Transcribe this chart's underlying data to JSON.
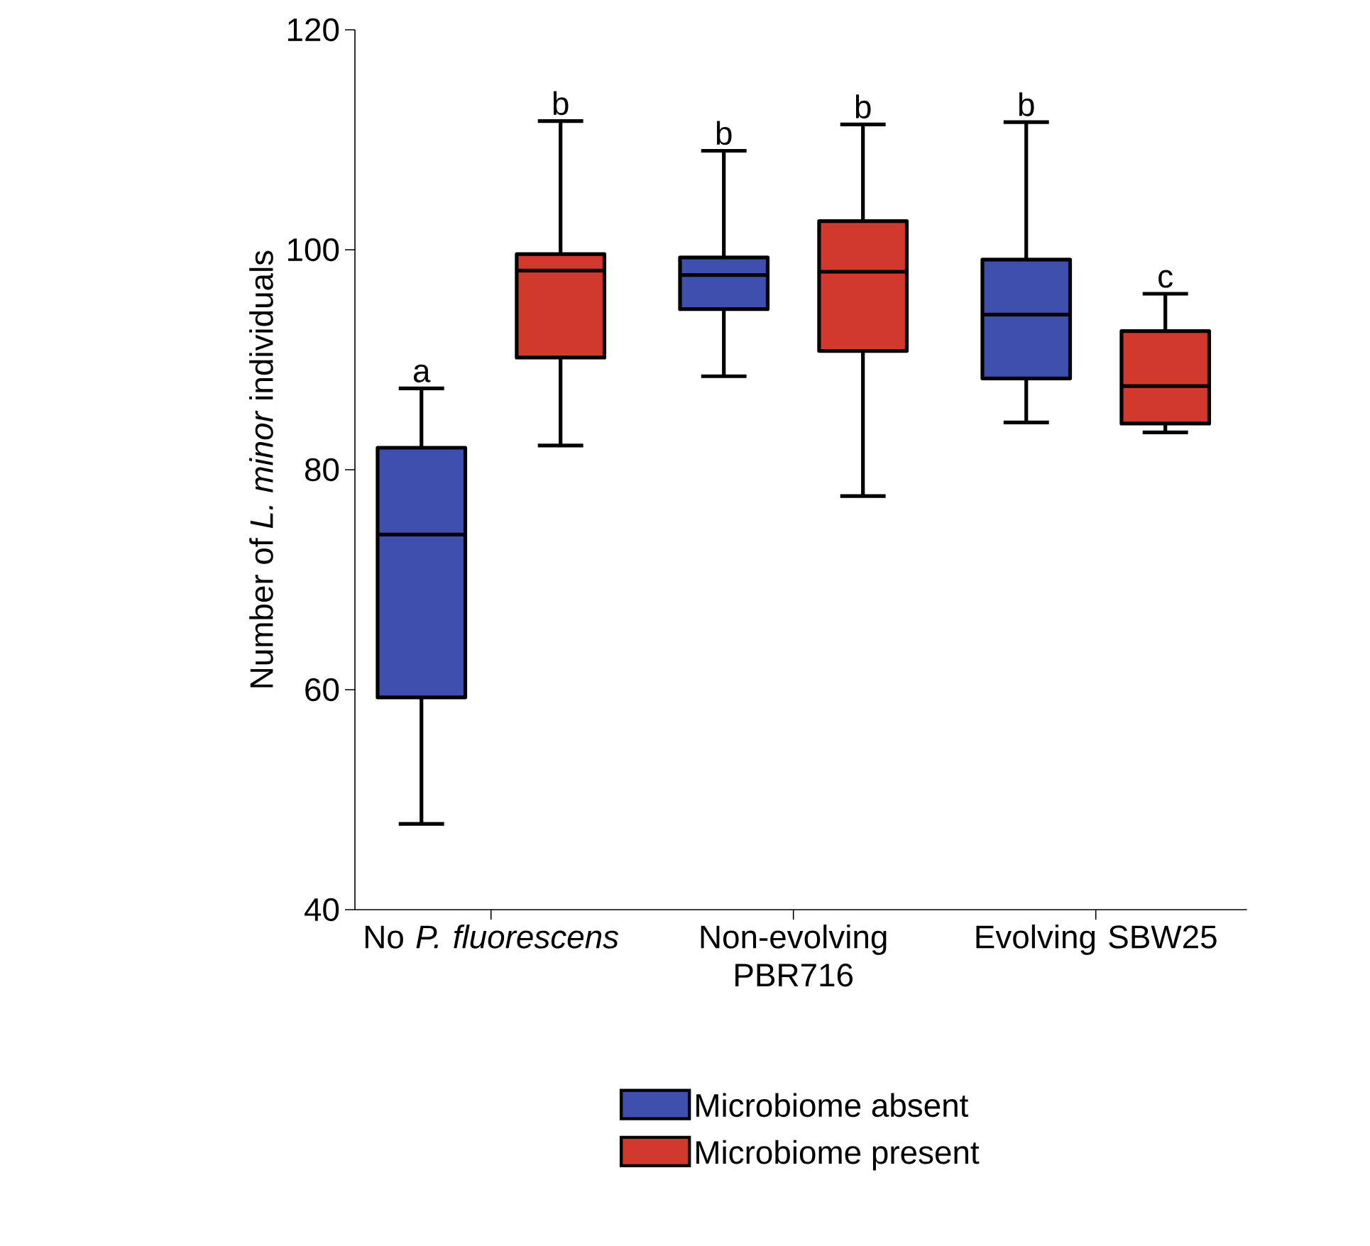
{
  "chart_data": {
    "type": "box",
    "ylabel": "Number of *L. minor* individuals",
    "categories": [
      "No *P. fluorescens*",
      "Non-evolving PBR716",
      "Evolving SBW25"
    ],
    "ylim": [
      40,
      120
    ],
    "yticks": [
      40,
      60,
      80,
      100,
      120
    ],
    "series": [
      {
        "name": "Microbiome absent",
        "color": "#3f4fae",
        "boxes": [
          {
            "low": 47.8,
            "q1": 59.3,
            "median": 74.1,
            "q3": 82.0,
            "high": 87.4
          },
          {
            "low": 88.5,
            "q1": 94.6,
            "median": 97.7,
            "q3": 99.3,
            "high": 109.0
          },
          {
            "low": 84.3,
            "q1": 88.3,
            "median": 94.1,
            "q3": 99.1,
            "high": 111.6
          }
        ]
      },
      {
        "name": "Microbiome present",
        "color": "#d2392d",
        "boxes": [
          {
            "low": 82.2,
            "q1": 90.2,
            "median": 98.1,
            "q3": 99.6,
            "high": 111.7
          },
          {
            "low": 77.6,
            "q1": 90.8,
            "median": 98.0,
            "q3": 102.6,
            "high": 111.4
          },
          {
            "low": 83.4,
            "q1": 84.2,
            "median": 87.6,
            "q3": 92.6,
            "high": 96.0
          }
        ]
      }
    ],
    "annotations": [
      "a",
      "b",
      "b",
      "b",
      "b",
      "c"
    ],
    "legend": "bottom",
    "grid": false
  }
}
